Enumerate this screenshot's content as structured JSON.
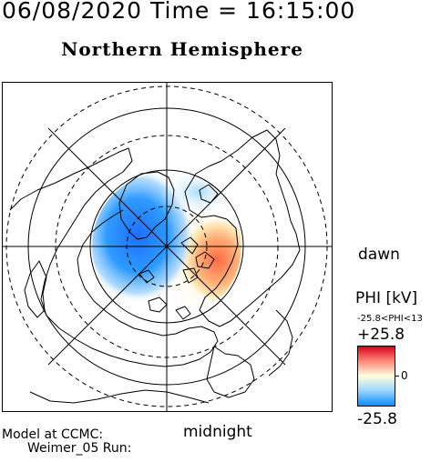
{
  "header": {
    "datetime": "06/08/2020 Time = 16:15:00",
    "title": "Northern Hemisphere"
  },
  "map": {
    "projection": "north polar",
    "graticule": "latitude circles + longitude spokes",
    "potential_pattern": {
      "negative_cell_side": "left (pre-noon / dawn-left)",
      "positive_cell_side": "right (afternoon / dusk-right)",
      "negative_color": "#1e88ff",
      "positive_color": "#ff5a3a",
      "neutral_color": "#ffffff"
    }
  },
  "labels": {
    "dawn": "dawn",
    "midnight": "midnight"
  },
  "colorbar": {
    "title": "PHI [kV]",
    "range_text": "-25.8<PHI<13",
    "max_label": "+25.8",
    "zero_label": "0",
    "min_label": "-25.8",
    "top_color": "#d9001c",
    "mid_color": "#ffffe0",
    "bottom_color": "#0a8cff"
  },
  "model": {
    "line1": "Model at CCMC:",
    "line2": "Weimer_05 Run:"
  }
}
